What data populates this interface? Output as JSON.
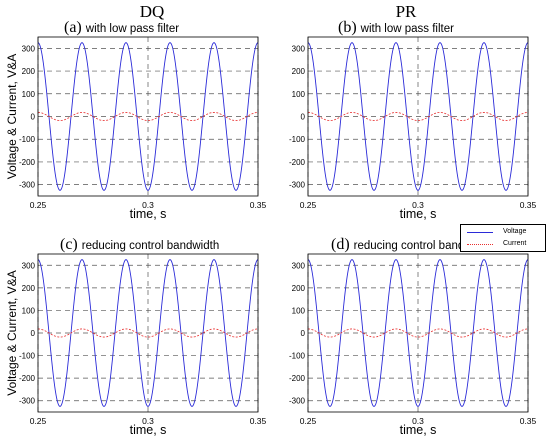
{
  "columns": {
    "left_title": "DQ",
    "right_title": "PR"
  },
  "legend": {
    "voltage_label": "Voltage",
    "current_label": "Current"
  },
  "colors": {
    "voltage": "#2b2bd8",
    "current": "#e83030",
    "grid": "#555555",
    "axes": "#000000"
  },
  "panels": [
    {
      "tag": "(a)",
      "subtitle": "with low pass filter"
    },
    {
      "tag": "(b)",
      "subtitle": "with low pass filter"
    },
    {
      "tag": "(c)",
      "subtitle": "reducing control bandwidth"
    },
    {
      "tag": "(d)",
      "subtitle": "reducing control bandwidth"
    }
  ],
  "chart_data": [
    {
      "type": "line",
      "panel": "(a)",
      "xlabel": "time, s",
      "ylabel": "Voltage & Current, V&A",
      "xlim": [
        0.25,
        0.35
      ],
      "ylim": [
        -350,
        350
      ],
      "grid": true,
      "xticks": [
        "0.25",
        "0.3",
        "0.35"
      ],
      "yticks": [
        "300",
        "200",
        "100",
        "0",
        "-100",
        "-200",
        "-300"
      ],
      "series": [
        {
          "name": "Voltage",
          "frequency_hz": 50,
          "amplitude": 325,
          "phase_deg": -90,
          "offset": 0
        },
        {
          "name": "Current",
          "frequency_hz": 50,
          "amplitude": 18,
          "phase_deg": -90,
          "offset": 0
        }
      ]
    },
    {
      "type": "line",
      "panel": "(b)",
      "xlabel": "time, s",
      "ylabel": "",
      "xlim": [
        0.25,
        0.35
      ],
      "ylim": [
        -350,
        350
      ],
      "grid": true,
      "xticks": [
        "0.25",
        "0.3",
        "0.35"
      ],
      "yticks": [
        "300",
        "200",
        "100",
        "0",
        "-100",
        "-200",
        "-300"
      ],
      "series": [
        {
          "name": "Voltage",
          "frequency_hz": 50,
          "amplitude": 325,
          "phase_deg": -90,
          "offset": 0
        },
        {
          "name": "Current",
          "frequency_hz": 50,
          "amplitude": 18,
          "phase_deg": -90,
          "offset": 0
        }
      ]
    },
    {
      "type": "line",
      "panel": "(c)",
      "xlabel": "time, s",
      "ylabel": "Voltage & Current, V&A",
      "xlim": [
        0.25,
        0.35
      ],
      "ylim": [
        -350,
        350
      ],
      "grid": true,
      "xticks": [
        "0.25",
        "0.3",
        "0.35"
      ],
      "yticks": [
        "300",
        "200",
        "100",
        "0",
        "-100",
        "-200",
        "-300"
      ],
      "series": [
        {
          "name": "Voltage",
          "frequency_hz": 50,
          "amplitude": 325,
          "phase_deg": -90,
          "offset": 0
        },
        {
          "name": "Current",
          "frequency_hz": 50,
          "amplitude": 18,
          "phase_deg": -90,
          "offset": 0
        }
      ]
    },
    {
      "type": "line",
      "panel": "(d)",
      "xlabel": "time, s",
      "ylabel": "",
      "xlim": [
        0.25,
        0.35
      ],
      "ylim": [
        -350,
        350
      ],
      "grid": true,
      "xticks": [
        "0.25",
        "0.3",
        "0.35"
      ],
      "yticks": [
        "300",
        "200",
        "100",
        "0",
        "-100",
        "-200",
        "-300"
      ],
      "series": [
        {
          "name": "Voltage",
          "frequency_hz": 50,
          "amplitude": 325,
          "phase_deg": -90,
          "offset": 0
        },
        {
          "name": "Current",
          "frequency_hz": 50,
          "amplitude": 18,
          "phase_deg": -90,
          "offset": 0
        }
      ]
    }
  ]
}
